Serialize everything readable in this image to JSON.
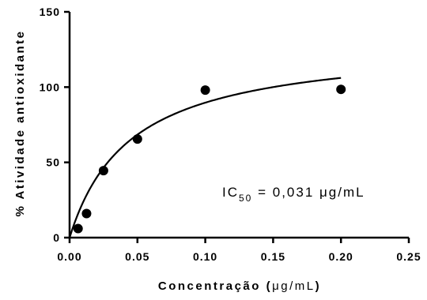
{
  "chart_data": {
    "type": "scatter",
    "xlabel_main": "Concentração (",
    "xlabel_unit": "μg/mL",
    "xlabel_close": ")",
    "ylabel": "% Atividade antioxidante",
    "xlim": [
      0,
      0.25
    ],
    "ylim": [
      0,
      150
    ],
    "x_ticks": [
      0,
      0.05,
      0.1,
      0.15,
      0.2,
      0.25
    ],
    "x_tick_labels": [
      "0.00",
      "0.05",
      "0.10",
      "0.15",
      "0.20",
      "0.25"
    ],
    "y_ticks": [
      0,
      50,
      100,
      150
    ],
    "y_tick_labels": [
      "0",
      "50",
      "100",
      "150"
    ],
    "points": {
      "x": [
        0.00625,
        0.0125,
        0.025,
        0.05,
        0.1,
        0.2
      ],
      "y": [
        6,
        16,
        44.5,
        65.5,
        98,
        98.5
      ]
    },
    "fit": {
      "model": "hyperbolic",
      "vmax": 130,
      "k": 0.045,
      "x_range": [
        0,
        0.2
      ]
    },
    "annotation": {
      "prefix": "IC",
      "subscript": "50",
      "value": " = 0,031 μg/mL"
    },
    "grid": false,
    "legend": "none"
  },
  "colors": {
    "marker": "#000000",
    "line": "#000000",
    "axis": "#000000"
  }
}
